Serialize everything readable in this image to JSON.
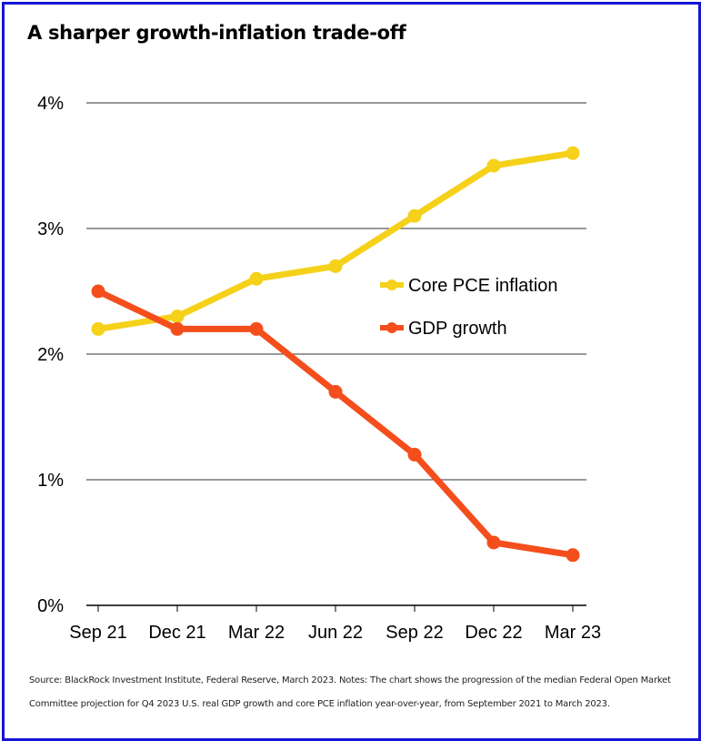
{
  "chart_data": {
    "type": "line",
    "title": "A sharper growth-inflation trade-off",
    "xlabel": "",
    "ylabel": "",
    "categories": [
      "Sep 21",
      "Dec 21",
      "Mar 22",
      "Jun 22",
      "Sep 22",
      "Dec 22",
      "Mar 23"
    ],
    "yticks": [
      "0%",
      "1%",
      "2%",
      "3%",
      "4%"
    ],
    "ylim": [
      0,
      4
    ],
    "grid": true,
    "legend": "center-right",
    "series": [
      {
        "name": "Core PCE inflation",
        "color": "#f5d11a",
        "values": [
          2.2,
          2.3,
          2.6,
          2.7,
          3.1,
          3.5,
          3.6
        ]
      },
      {
        "name": "GDP growth",
        "color": "#f44e1c",
        "values": [
          2.5,
          2.2,
          2.2,
          1.7,
          1.2,
          0.5,
          0.4
        ]
      }
    ]
  },
  "notes": [
    "Source: BlackRock Investment Institute, Federal Reserve, March 2023. Notes: The chart shows the progression of the median Federal Open Market",
    "Committee projection for Q4 2023 U.S. real GDP growth and core PCE inflation year-over-year, from September 2021 to March 2023."
  ]
}
